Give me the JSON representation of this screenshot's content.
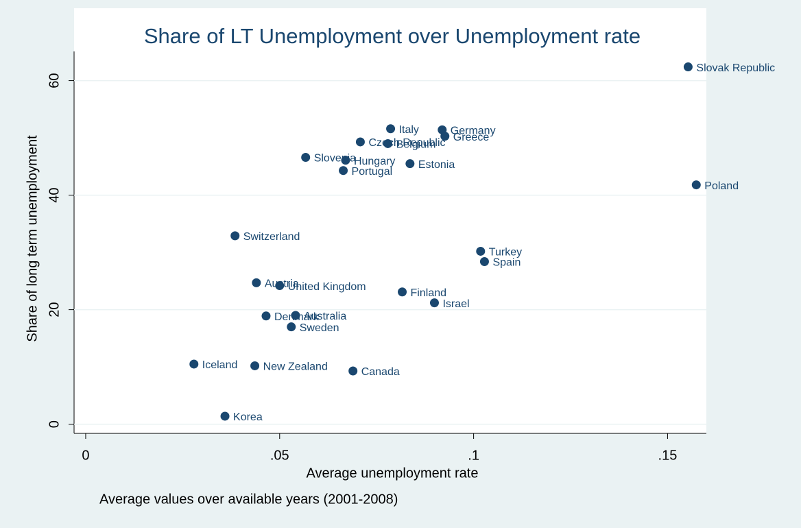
{
  "chart_data": {
    "type": "scatter",
    "title": "Share of LT Unemployment over Unemployment rate",
    "x_label": "Average unemployment rate",
    "y_label": "Share of long term unemployment",
    "note": "Average values over available years (2001-2008)",
    "color": "#1a476f",
    "grid": true,
    "xlim": [
      -0.003,
      0.16
    ],
    "ylim": [
      -1.6,
      65.1
    ],
    "xticks": [
      0,
      {
        "value": 0.05,
        "label": ".05"
      },
      {
        "value": 0.1,
        "label": ".1"
      },
      {
        "value": 0.15,
        "label": ".15"
      }
    ],
    "yticks": [
      0,
      20,
      40,
      60
    ],
    "labels": [
      "Slovak Republic",
      "Poland",
      "Italy",
      "Germany",
      "Greece",
      "Czech Republic",
      "Belgium",
      "Slovenia",
      "Hungary",
      "Estonia",
      "Portugal",
      "Switzerland",
      "Turkey",
      "Spain",
      "Austria",
      "United Kingdom",
      "Finland",
      "Israel",
      "Denmark",
      "Australia",
      "Sweden",
      "Iceland",
      "New Zealand",
      "Canada",
      "Korea"
    ],
    "x": [
      0.1553,
      0.1574,
      0.0786,
      0.0919,
      0.0926,
      0.0708,
      0.0779,
      0.0567,
      0.067,
      0.0836,
      0.0664,
      0.0385,
      0.1018,
      0.1028,
      0.044,
      0.05,
      0.0816,
      0.0899,
      0.0465,
      0.0541,
      0.053,
      0.0279,
      0.0436,
      0.0689,
      0.0359
    ],
    "values": [
      62.4,
      41.8,
      51.6,
      51.4,
      50.3,
      49.3,
      49.0,
      46.6,
      46.1,
      45.5,
      44.3,
      32.9,
      30.2,
      28.4,
      24.7,
      24.2,
      23.1,
      21.2,
      18.9,
      19.0,
      17.0,
      10.5,
      10.2,
      9.3,
      1.4
    ]
  }
}
